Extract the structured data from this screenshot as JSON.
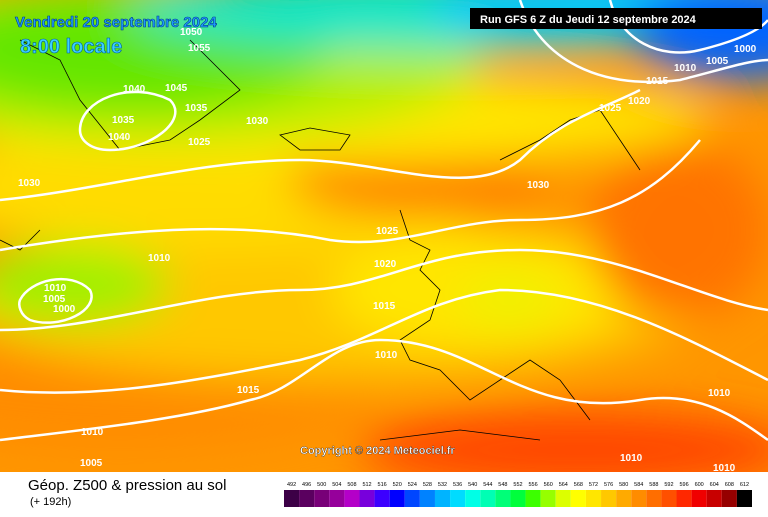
{
  "header": {
    "date": "Vendredi 20 septembre 2024",
    "time": "8:00 locale",
    "run": "Run GFS 6 Z du Jeudi 12 septembre 2024"
  },
  "copyright": "Copyright © 2024 Meteociel.fr",
  "footer": {
    "title": "Géop. Z500 & pression au sol",
    "subtitle": "(+ 192h)"
  },
  "isobar_labels": [
    1050,
    1055,
    1045,
    1040,
    1035,
    1035,
    1040,
    1025,
    1030,
    1030,
    1010,
    1010,
    1005,
    1000,
    1030,
    1025,
    1020,
    1015,
    1010,
    1015,
    1010,
    1005,
    1000,
    1005,
    1010,
    1015,
    1020,
    1025,
    1010,
    1010,
    1010
  ],
  "scale": [
    {
      "value": 492,
      "color": "#3c0046"
    },
    {
      "value": 496,
      "color": "#5a005f"
    },
    {
      "value": 500,
      "color": "#780078"
    },
    {
      "value": 504,
      "color": "#96009b"
    },
    {
      "value": 508,
      "color": "#b400c8"
    },
    {
      "value": 512,
      "color": "#7800dc"
    },
    {
      "value": 516,
      "color": "#3c00ff"
    },
    {
      "value": 520,
      "color": "#0000ff"
    },
    {
      "value": 524,
      "color": "#0046ff"
    },
    {
      "value": 528,
      "color": "#0082ff"
    },
    {
      "value": 532,
      "color": "#00b4ff"
    },
    {
      "value": 536,
      "color": "#00dcff"
    },
    {
      "value": 540,
      "color": "#00ffe6"
    },
    {
      "value": 544,
      "color": "#00ffb4"
    },
    {
      "value": 548,
      "color": "#00ff78"
    },
    {
      "value": 552,
      "color": "#00ff3c"
    },
    {
      "value": 556,
      "color": "#3cff00"
    },
    {
      "value": 560,
      "color": "#96ff00"
    },
    {
      "value": 564,
      "color": "#dcff00"
    },
    {
      "value": 568,
      "color": "#ffff00"
    },
    {
      "value": 572,
      "color": "#ffe600"
    },
    {
      "value": 576,
      "color": "#ffc800"
    },
    {
      "value": 580,
      "color": "#ffaa00"
    },
    {
      "value": 584,
      "color": "#ff8c00"
    },
    {
      "value": 588,
      "color": "#ff6e00"
    },
    {
      "value": 592,
      "color": "#ff5000"
    },
    {
      "value": 596,
      "color": "#ff2800"
    },
    {
      "value": 600,
      "color": "#f00000"
    },
    {
      "value": 604,
      "color": "#c80000"
    },
    {
      "value": 608,
      "color": "#960000"
    },
    {
      "value": 612,
      "color": "#000000"
    }
  ]
}
